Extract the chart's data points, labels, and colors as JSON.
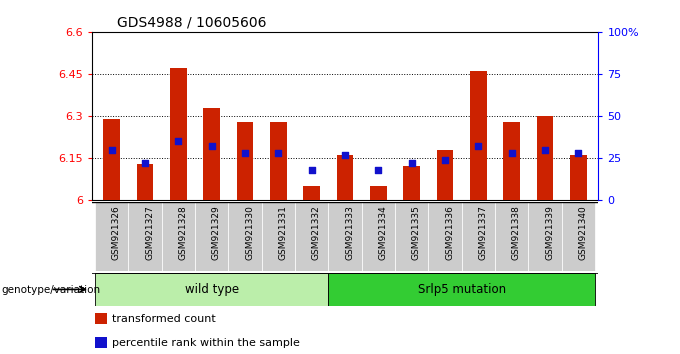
{
  "title": "GDS4988 / 10605606",
  "samples": [
    "GSM921326",
    "GSM921327",
    "GSM921328",
    "GSM921329",
    "GSM921330",
    "GSM921331",
    "GSM921332",
    "GSM921333",
    "GSM921334",
    "GSM921335",
    "GSM921336",
    "GSM921337",
    "GSM921338",
    "GSM921339",
    "GSM921340"
  ],
  "transformed_count": [
    6.29,
    6.13,
    6.47,
    6.33,
    6.28,
    6.28,
    6.05,
    6.16,
    6.05,
    6.12,
    6.18,
    6.46,
    6.28,
    6.3,
    6.16
  ],
  "percentile_rank": [
    30,
    22,
    35,
    32,
    28,
    28,
    18,
    27,
    18,
    22,
    24,
    32,
    28,
    30,
    28
  ],
  "ymin": 6.0,
  "ymax": 6.6,
  "yticks": [
    6.0,
    6.15,
    6.3,
    6.45,
    6.6
  ],
  "ytick_labels": [
    "6",
    "6.15",
    "6.3",
    "6.45",
    "6.6"
  ],
  "right_yticks": [
    0,
    25,
    50,
    75,
    100
  ],
  "right_ytick_labels": [
    "0",
    "25",
    "50",
    "75",
    "100%"
  ],
  "bar_color": "#cc2200",
  "dot_color": "#1111cc",
  "groups": [
    {
      "label": "wild type",
      "start": 0,
      "end": 7,
      "color": "#bbeeaa"
    },
    {
      "label": "Srlp5 mutation",
      "start": 7,
      "end": 15,
      "color": "#33cc33"
    }
  ],
  "group_label_prefix": "genotype/variation",
  "legend_items": [
    {
      "label": "transformed count",
      "color": "#cc2200"
    },
    {
      "label": "percentile rank within the sample",
      "color": "#1111cc"
    }
  ],
  "bar_width": 0.5,
  "dot_size": 22,
  "xtick_bg": "#cccccc"
}
